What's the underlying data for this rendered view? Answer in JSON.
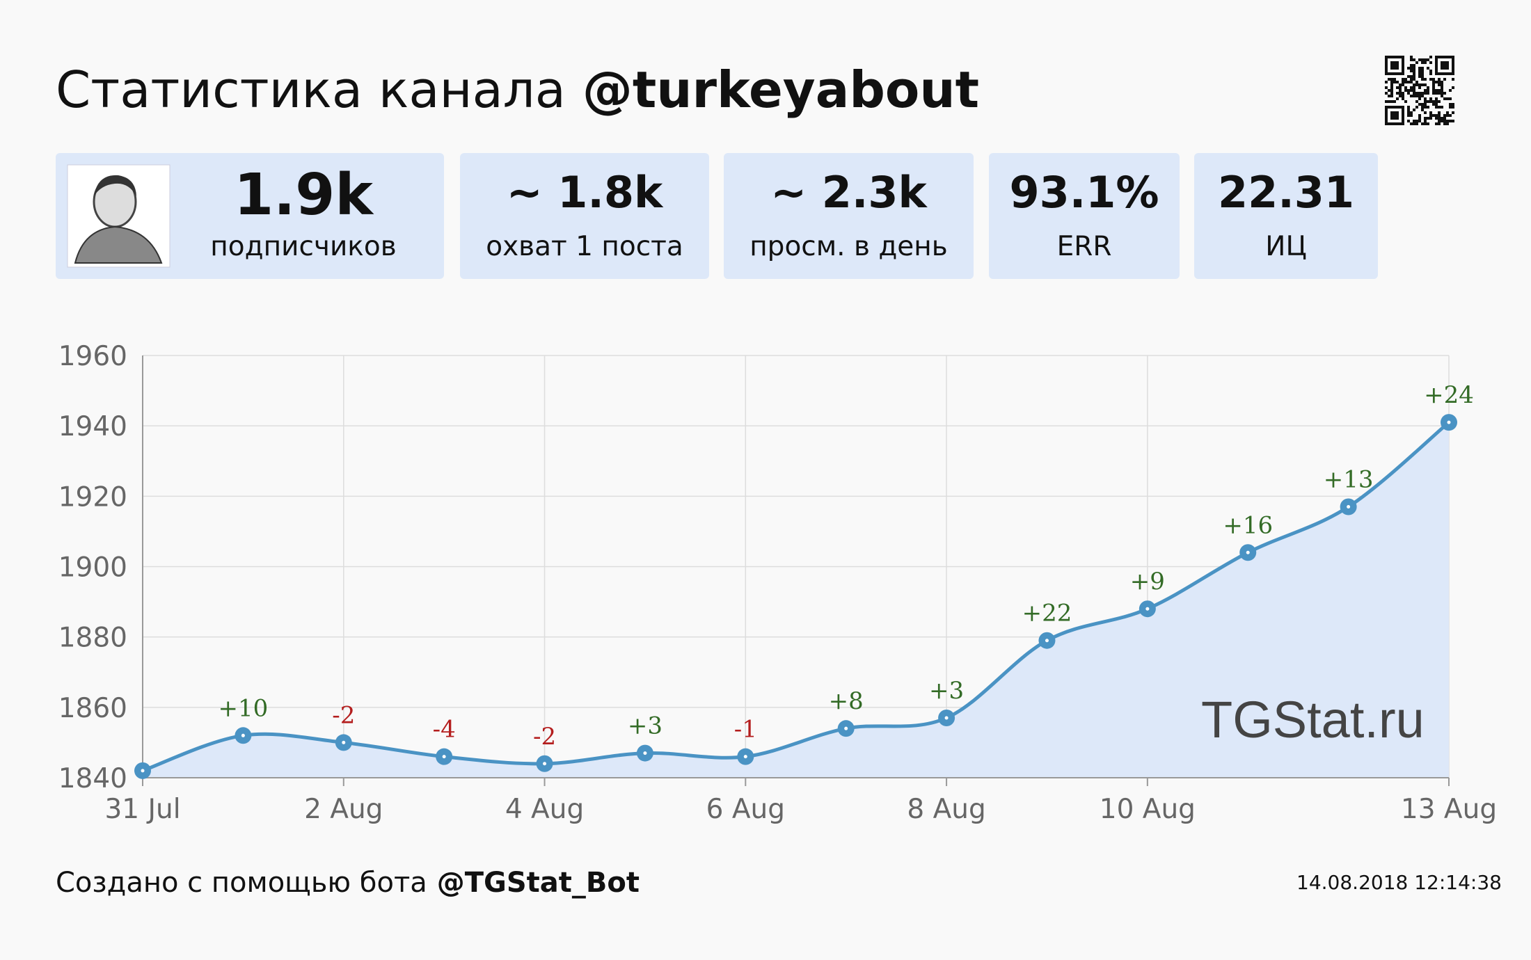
{
  "header": {
    "title": "Статистика канала",
    "channel": "@turkeyabout"
  },
  "stats": [
    {
      "value": "1.9k",
      "label": "подписчиков"
    },
    {
      "value": "~ 1.8k",
      "label": "охват 1 поста"
    },
    {
      "value": "~ 2.3k",
      "label": "просм. в день"
    },
    {
      "value": "93.1%",
      "label": "ERR"
    },
    {
      "value": "22.31",
      "label": "ИЦ"
    }
  ],
  "chart_data": {
    "type": "line",
    "categories": [
      "31 Jul",
      null,
      "2 Aug",
      null,
      "4 Aug",
      null,
      "6 Aug",
      null,
      "8 Aug",
      null,
      "10 Aug",
      null,
      null,
      "13 Aug"
    ],
    "values": [
      1842,
      1852,
      1850,
      1846,
      1844,
      1847,
      1846,
      1854,
      1857,
      1879,
      1888,
      1904,
      1917,
      1941
    ],
    "color": "#4a93c4",
    "fill_color": "#dde8f9",
    "deltas": {
      "values": [
        null,
        10,
        -2,
        -4,
        -2,
        3,
        -1,
        8,
        3,
        22,
        9,
        16,
        13,
        24
      ],
      "value_labels": [
        null,
        "+10",
        "-2",
        "-4",
        "-2",
        "+3",
        "-1",
        "+8",
        "+3",
        "+22",
        "+9",
        "+16",
        "+13",
        "+24"
      ],
      "positive_color": "#336b26",
      "negative_color": "#b41e1e"
    },
    "ylim": [
      1840,
      1960
    ],
    "yticks": [
      1840,
      1860,
      1880,
      1900,
      1920,
      1940,
      1960
    ],
    "grid": true
  },
  "watermark": "TGStat.ru",
  "footer": {
    "text": "Создано с помощью бота",
    "bot": "@TGStat_Bot",
    "timestamp": "14.08.2018 12:14:38"
  }
}
